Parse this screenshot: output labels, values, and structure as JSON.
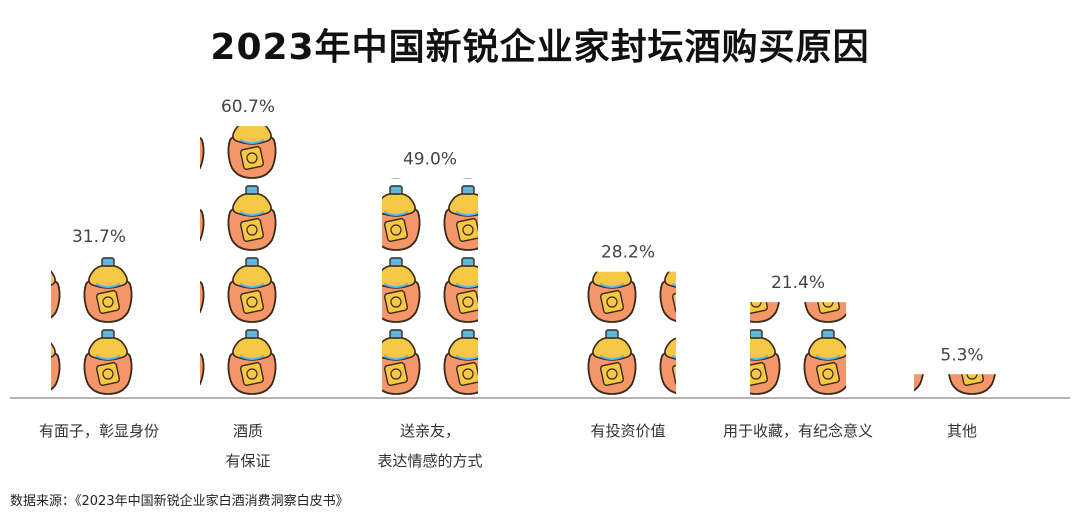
{
  "title": "2023年中国新锐企业家封坛酒购买原因",
  "source": "数据来源：《2023年中国新锐企业家白酒消费洞察白皮书》",
  "colors": {
    "jar_body": "#F4956A",
    "jar_outline": "#3A2A1A",
    "jar_cloth": "#F7C844",
    "jar_cap": "#5BB8E0",
    "axis": "#888888"
  },
  "icon": "wine-jar-icon",
  "chart_data": {
    "type": "bar",
    "title": "2023年中国新锐企业家封坛酒购买原因",
    "categories": [
      [
        "有面子，彰显身份"
      ],
      [
        "酒质",
        "有保证"
      ],
      [
        "送亲友，",
        "表达情感的方式"
      ],
      [
        "有投资价值"
      ],
      [
        "用于收藏，有纪念意义"
      ],
      [
        "其他"
      ]
    ],
    "values": [
      31.7,
      60.7,
      49.0,
      28.2,
      21.4,
      5.3
    ],
    "value_labels": [
      "31.7%",
      "60.7%",
      "49.0%",
      "28.2%",
      "21.4%",
      "5.3%"
    ],
    "ylim": [
      0,
      66
    ],
    "xlabel": "",
    "ylabel": "",
    "grid": false,
    "legend": "none"
  }
}
